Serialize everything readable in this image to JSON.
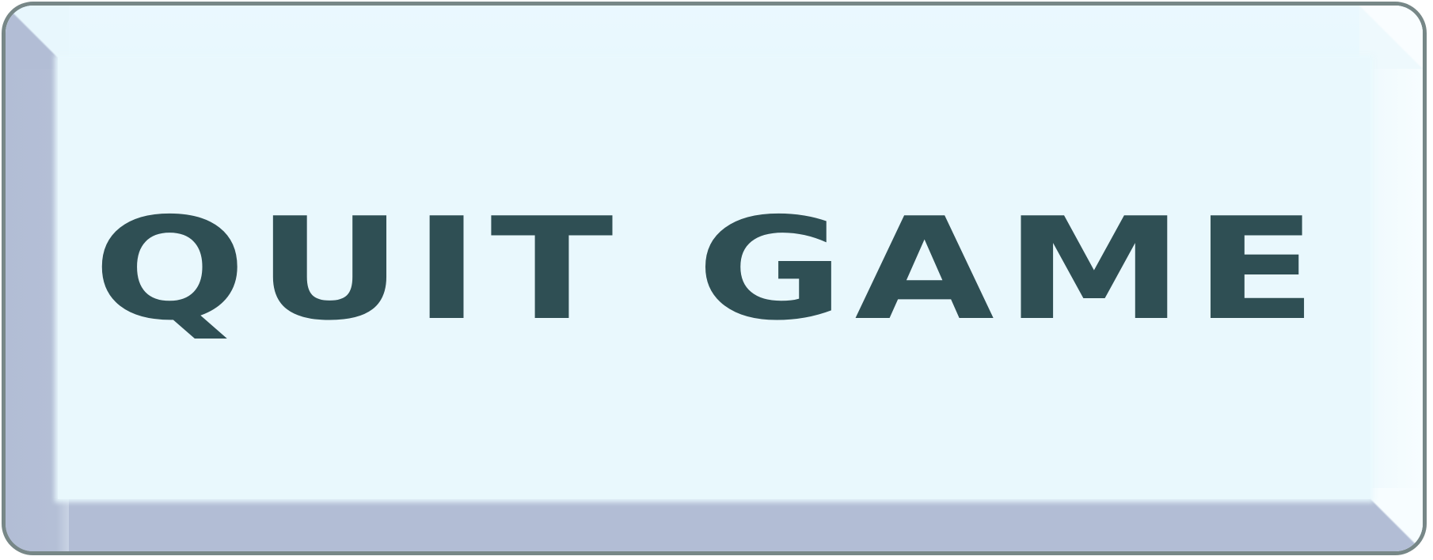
{
  "button": {
    "label": "QUIT GAME"
  },
  "colors": {
    "text": "#2f4f54",
    "face": "#e9f8fd",
    "shadow_bevel": "#b2bdd5",
    "border": "#778787"
  }
}
